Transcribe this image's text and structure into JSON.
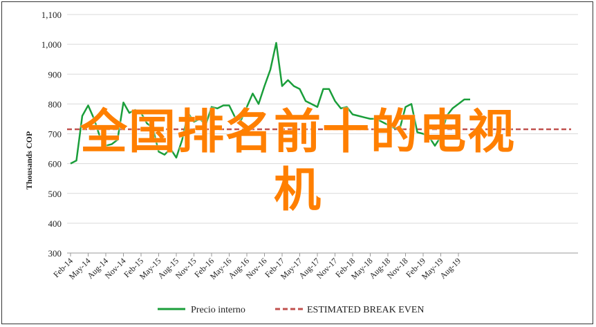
{
  "chart_data": {
    "type": "line",
    "ylabel": "Thousands COP",
    "ylim": [
      300,
      1100
    ],
    "yticks": [
      "300",
      "400",
      "500",
      "600",
      "700",
      "800",
      "900",
      "1,000",
      "1,100"
    ],
    "xticks": [
      "Feb-14",
      "May-14",
      "Aug-14",
      "Nov-14",
      "Feb-15",
      "May-15",
      "Aug-15",
      "Nov-15",
      "Feb-16",
      "May-16",
      "Aug-16",
      "Nov-16",
      "Feb-17",
      "May-17",
      "Aug-17",
      "Nov-17",
      "Feb-18",
      "May-18",
      "Aug-18",
      "Nov-18",
      "Feb-19",
      "May-19",
      "Aug-19"
    ],
    "grid": true,
    "legend_position": "bottom",
    "series": [
      {
        "name": "Precio interno",
        "color": "#1a9e3a",
        "style": "solid",
        "x": [
          "Feb-14",
          "Mar-14",
          "Apr-14",
          "May-14",
          "Jun-14",
          "Jul-14",
          "Aug-14",
          "Sep-14",
          "Oct-14",
          "Nov-14",
          "Dec-14",
          "Jan-15",
          "Feb-15",
          "Mar-15",
          "Apr-15",
          "May-15",
          "Jun-15",
          "Jul-15",
          "Aug-15",
          "Sep-15",
          "Oct-15",
          "Nov-15",
          "Dec-15",
          "Jan-16",
          "Feb-16",
          "Mar-16",
          "Apr-16",
          "May-16",
          "Jun-16",
          "Jul-16",
          "Aug-16",
          "Sep-16",
          "Oct-16",
          "Nov-16",
          "Dec-16",
          "Jan-17",
          "Feb-17",
          "Mar-17",
          "Apr-17",
          "May-17",
          "Jun-17",
          "Jul-17",
          "Aug-17",
          "Sep-17",
          "Oct-17",
          "Nov-17",
          "Dec-17",
          "Jan-18",
          "Feb-18",
          "Mar-18",
          "Apr-18",
          "May-18",
          "Jun-18",
          "Jul-18",
          "Aug-18",
          "Sep-18",
          "Oct-18",
          "Nov-18",
          "Dec-18",
          "Jan-19",
          "Feb-19",
          "Mar-19",
          "Apr-19",
          "May-19",
          "Jun-19",
          "Jul-19",
          "Aug-19",
          "Sep-19",
          "Oct-19"
        ],
        "values": [
          600,
          610,
          760,
          795,
          750,
          690,
          660,
          665,
          680,
          805,
          770,
          780,
          770,
          735,
          720,
          640,
          630,
          650,
          620,
          680,
          770,
          740,
          750,
          730,
          790,
          785,
          795,
          795,
          755,
          745,
          790,
          835,
          800,
          860,
          915,
          1005,
          860,
          880,
          860,
          850,
          810,
          800,
          790,
          850,
          850,
          810,
          785,
          790,
          765,
          760,
          755,
          750,
          750,
          740,
          730,
          720,
          715,
          790,
          800,
          705,
          700,
          690,
          660,
          690,
          760,
          785,
          800,
          815,
          815
        ]
      },
      {
        "name": "ESTIMATED BREAK EVEN",
        "color": "#c0504d",
        "style": "dashed",
        "value": 715
      }
    ]
  },
  "overlay_text": {
    "line1": "全国排名前十的电视",
    "line2": "机"
  }
}
